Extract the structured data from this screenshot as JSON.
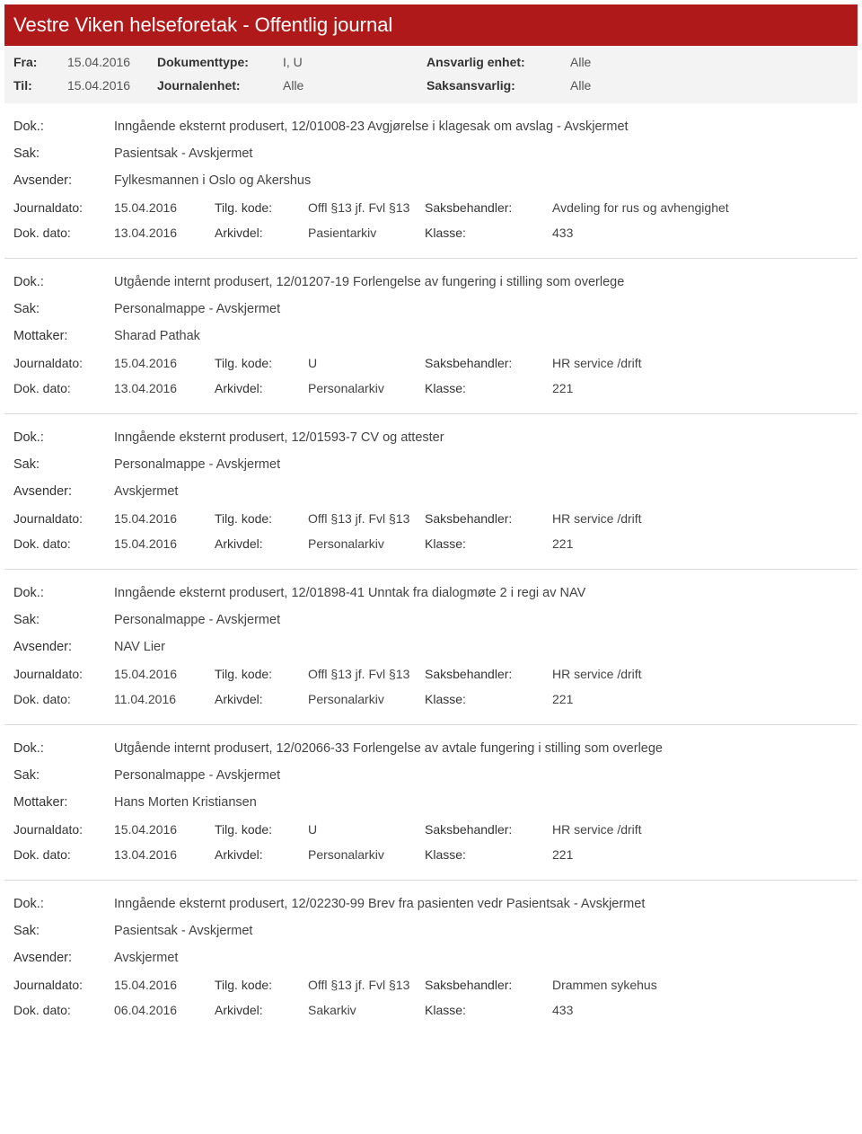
{
  "header": {
    "title": "Vestre Viken helseforetak - Offentlig journal"
  },
  "filters": {
    "fra_label": "Fra:",
    "fra_value": "15.04.2016",
    "til_label": "Til:",
    "til_value": "15.04.2016",
    "doktype_label": "Dokumenttype:",
    "doktype_value": "I, U",
    "journalenhet_label": "Journalenhet:",
    "journalenhet_value": "Alle",
    "ansvarlig_label": "Ansvarlig enhet:",
    "ansvarlig_value": "Alle",
    "saksansvarlig_label": "Saksansvarlig:",
    "saksansvarlig_value": "Alle"
  },
  "labels": {
    "dok": "Dok.:",
    "sak": "Sak:",
    "avsender": "Avsender:",
    "mottaker": "Mottaker:",
    "journaldato": "Journaldato:",
    "dokdato": "Dok. dato:",
    "tilgkode": "Tilg. kode:",
    "arkivdel": "Arkivdel:",
    "saksbehandler": "Saksbehandler:",
    "klasse": "Klasse:"
  },
  "entries": [
    {
      "dok": "Inngående eksternt produsert, 12/01008-23 Avgjørelse i klagesak om avslag - Avskjermet",
      "sak": "Pasientsak - Avskjermet",
      "party_label": "Avsender:",
      "party": "Fylkesmannen i Oslo og Akershus",
      "journaldato": "15.04.2016",
      "tilgkode": "Offl §13 jf. Fvl §13",
      "saksbehandler": "Avdeling for rus og avhengighet",
      "dokdato": "13.04.2016",
      "arkivdel": "Pasientarkiv",
      "klasse": "433"
    },
    {
      "dok": "Utgående internt produsert, 12/01207-19 Forlengelse av fungering i stilling som overlege",
      "sak": "Personalmappe - Avskjermet",
      "party_label": "Mottaker:",
      "party": "Sharad Pathak",
      "journaldato": "15.04.2016",
      "tilgkode": "U",
      "saksbehandler": "HR service /drift",
      "dokdato": "13.04.2016",
      "arkivdel": "Personalarkiv",
      "klasse": "221"
    },
    {
      "dok": "Inngående eksternt produsert, 12/01593-7 CV og attester",
      "sak": "Personalmappe - Avskjermet",
      "party_label": "Avsender:",
      "party": "Avskjermet",
      "journaldato": "15.04.2016",
      "tilgkode": "Offl §13 jf. Fvl §13",
      "saksbehandler": "HR service /drift",
      "dokdato": "15.04.2016",
      "arkivdel": "Personalarkiv",
      "klasse": "221"
    },
    {
      "dok": "Inngående eksternt produsert, 12/01898-41 Unntak fra dialogmøte 2 i regi av NAV",
      "sak": "Personalmappe - Avskjermet",
      "party_label": "Avsender:",
      "party": "NAV Lier",
      "journaldato": "15.04.2016",
      "tilgkode": "Offl §13 jf. Fvl §13",
      "saksbehandler": "HR service /drift",
      "dokdato": "11.04.2016",
      "arkivdel": "Personalarkiv",
      "klasse": "221"
    },
    {
      "dok": "Utgående internt produsert, 12/02066-33 Forlengelse av avtale fungering i stilling som overlege",
      "sak": "Personalmappe - Avskjermet",
      "party_label": "Mottaker:",
      "party": "Hans Morten Kristiansen",
      "journaldato": "15.04.2016",
      "tilgkode": "U",
      "saksbehandler": "HR service /drift",
      "dokdato": "13.04.2016",
      "arkivdel": "Personalarkiv",
      "klasse": "221"
    },
    {
      "dok": "Inngående eksternt produsert, 12/02230-99 Brev fra pasienten vedr Pasientsak - Avskjermet",
      "sak": "Pasientsak - Avskjermet",
      "party_label": "Avsender:",
      "party": "Avskjermet",
      "journaldato": "15.04.2016",
      "tilgkode": "Offl §13 jf. Fvl §13",
      "saksbehandler": "Drammen sykehus",
      "dokdato": "06.04.2016",
      "arkivdel": "Sakarkiv",
      "klasse": "433"
    }
  ],
  "colors": {
    "header_bg": "#b01919",
    "filter_bg": "#f3f3f3",
    "divider": "#d9d9d9",
    "text": "#444444"
  }
}
